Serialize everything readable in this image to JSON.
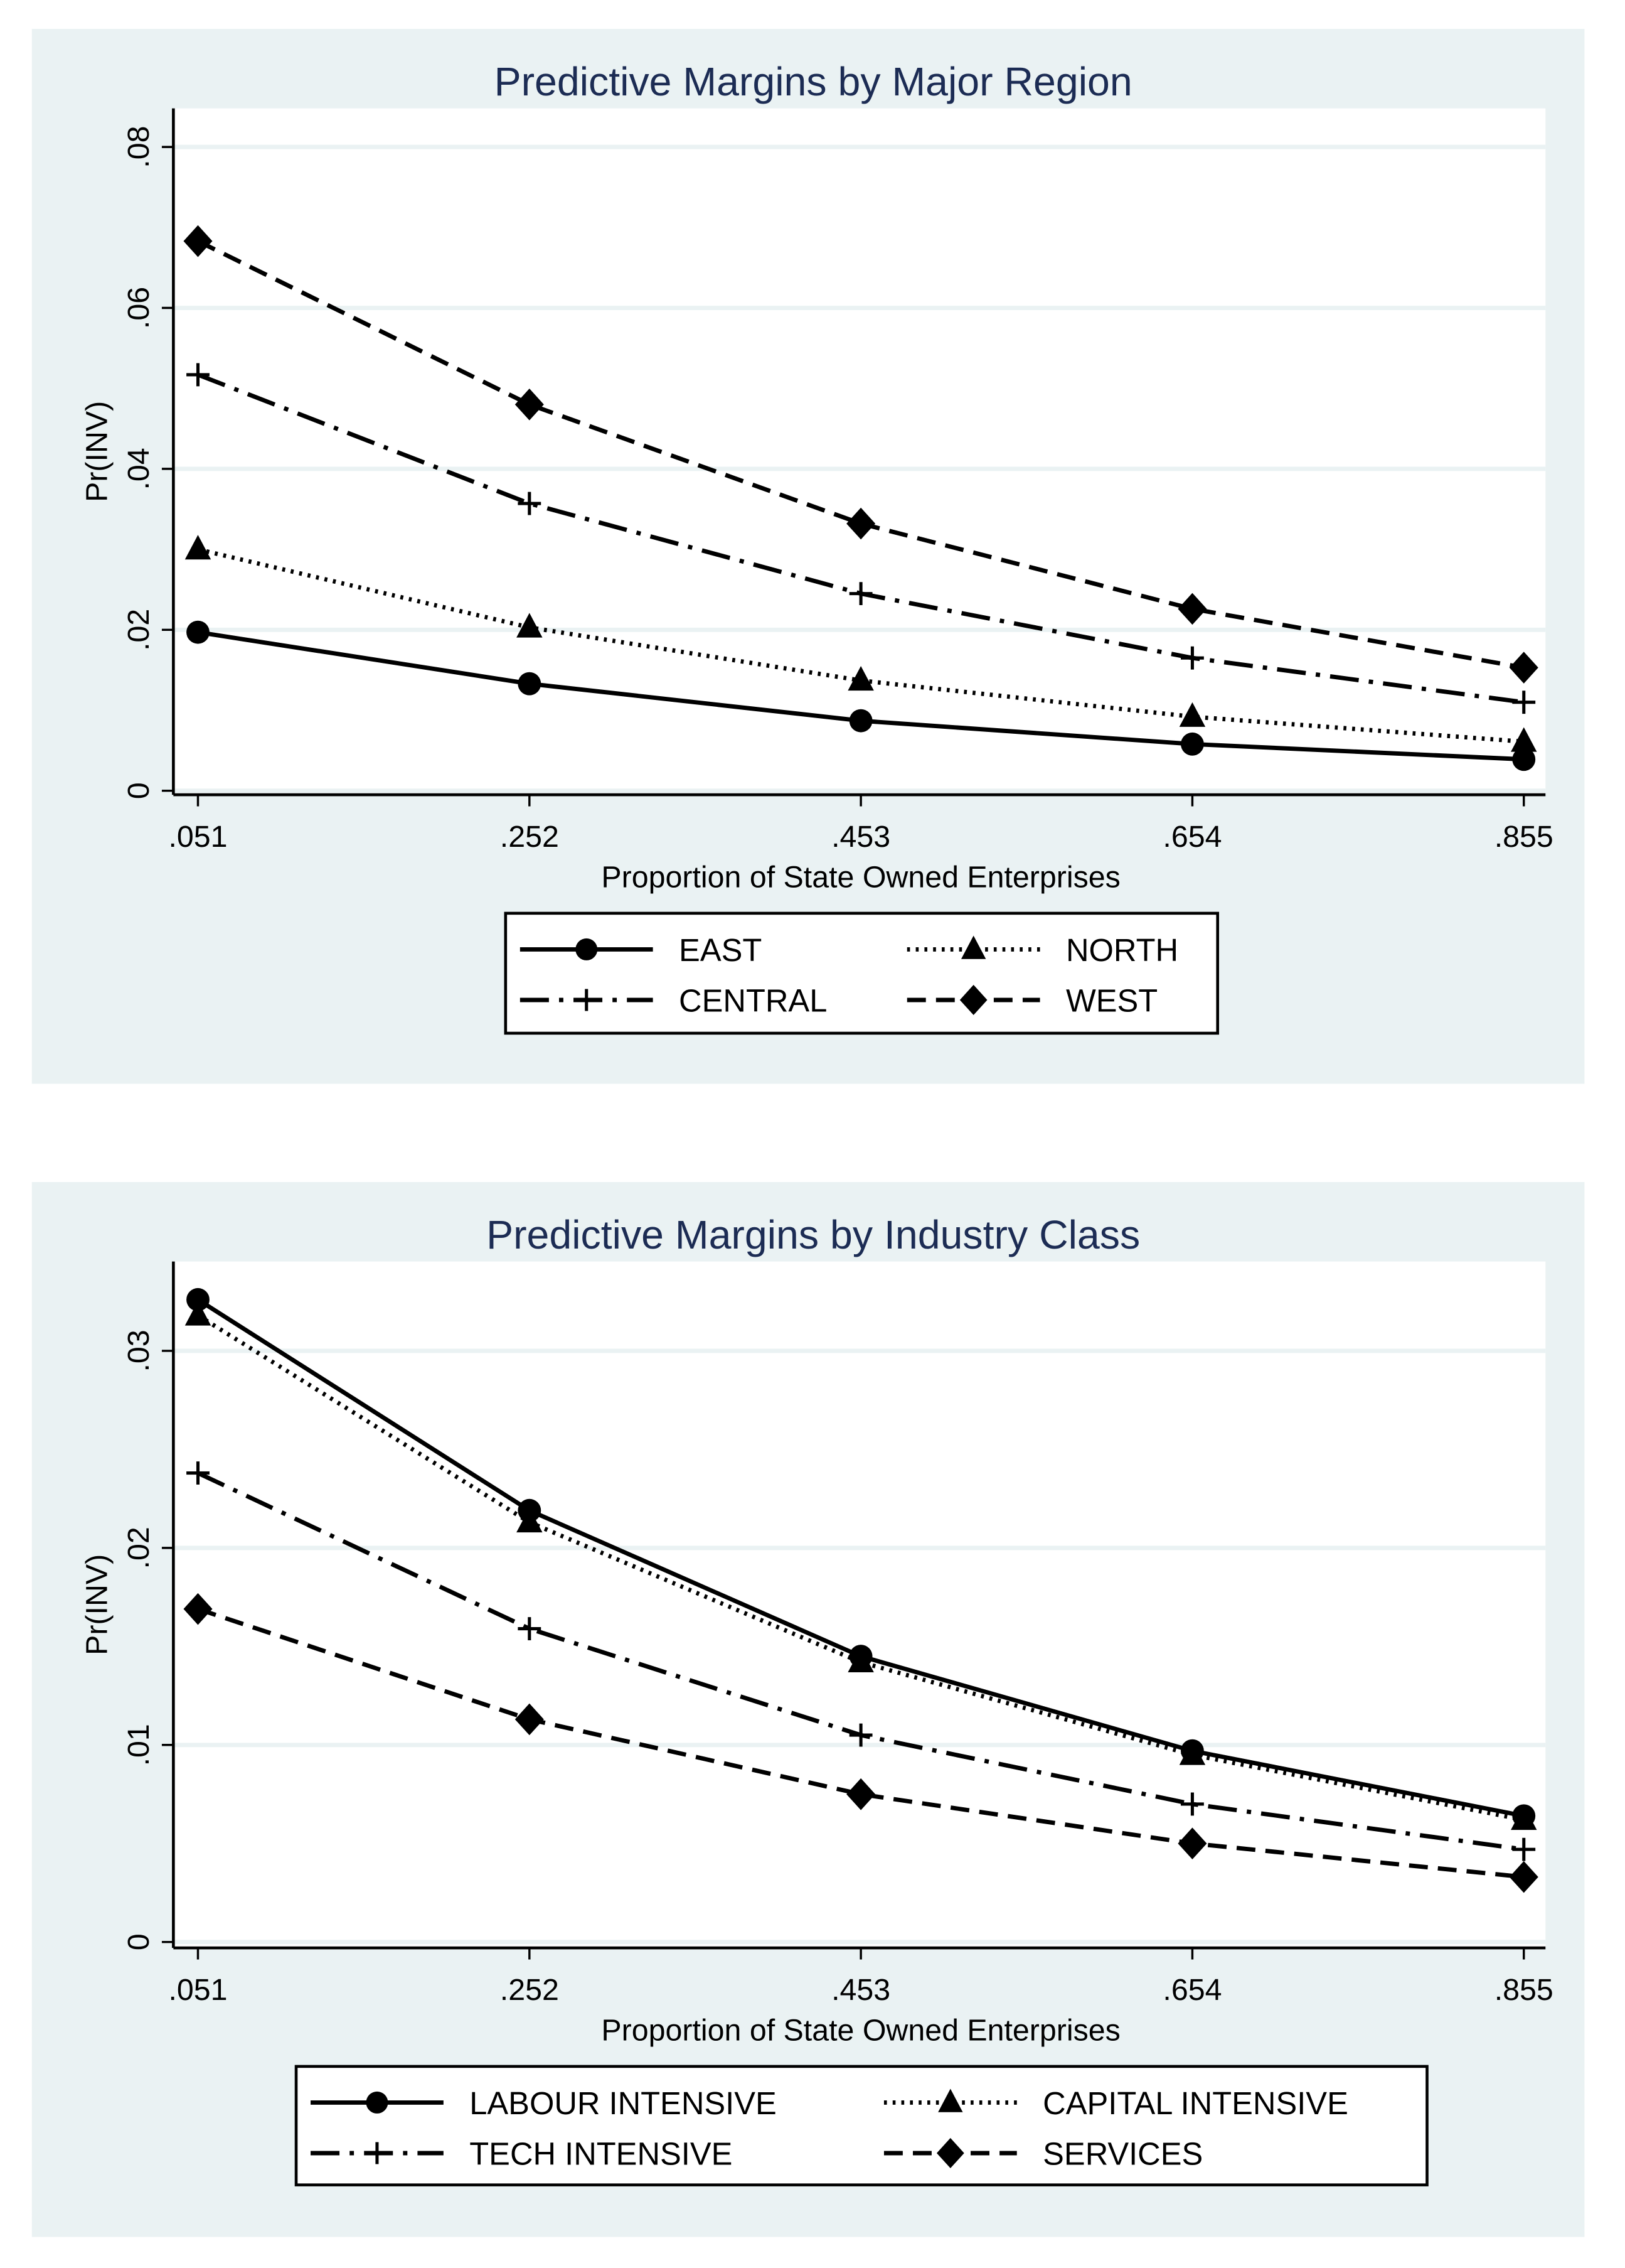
{
  "chart_data": [
    {
      "type": "line",
      "title": "Predictive Margins by Major Region",
      "xlabel": "Proportion of State Owned Enterprises",
      "ylabel": "Pr(INV)",
      "x": [
        0.051,
        0.252,
        0.453,
        0.654,
        0.855
      ],
      "xtick_labels": [
        ".051",
        ".252",
        ".453",
        ".654",
        ".855"
      ],
      "yticks": [
        0,
        0.02,
        0.04,
        0.06,
        0.08
      ],
      "ytick_labels": [
        "0",
        ".02",
        ".04",
        ".06",
        ".08"
      ],
      "ylim": [
        -0.0005,
        0.083
      ],
      "grid": true,
      "legend_placement": "bottom",
      "series": [
        {
          "name": "EAST",
          "marker": "circle",
          "line": "solid",
          "values": [
            0.0197,
            0.0133,
            0.0087,
            0.0058,
            0.0039
          ]
        },
        {
          "name": "NORTH",
          "marker": "triangle",
          "line": "dotted",
          "values": [
            0.03,
            0.0203,
            0.0137,
            0.0092,
            0.0061
          ]
        },
        {
          "name": "CENTRAL",
          "marker": "plus",
          "line": "dash-dot",
          "values": [
            0.0517,
            0.0357,
            0.0245,
            0.0165,
            0.011
          ]
        },
        {
          "name": "WEST",
          "marker": "diamond",
          "line": "dashed",
          "values": [
            0.0683,
            0.048,
            0.0332,
            0.0226,
            0.0153
          ]
        }
      ]
    },
    {
      "type": "line",
      "title": "Predictive Margins by Industry Class",
      "xlabel": "Proportion of State Owned Enterprises",
      "ylabel": "Pr(INV)",
      "x": [
        0.051,
        0.252,
        0.453,
        0.654,
        0.855
      ],
      "xtick_labels": [
        ".051",
        ".252",
        ".453",
        ".654",
        ".855"
      ],
      "yticks": [
        0,
        0.01,
        0.02,
        0.03
      ],
      "ytick_labels": [
        "0",
        ".01",
        ".02",
        ".03"
      ],
      "ylim": [
        -0.0003,
        0.0338
      ],
      "grid": true,
      "legend_placement": "bottom",
      "series": [
        {
          "name": "LABOUR INTENSIVE",
          "marker": "circle",
          "line": "solid",
          "values": [
            0.0326,
            0.0219,
            0.0145,
            0.0097,
            0.0064
          ]
        },
        {
          "name": "CAPITAL INTENSIVE",
          "marker": "triangle",
          "line": "dotted",
          "values": [
            0.0318,
            0.0213,
            0.0142,
            0.0095,
            0.0062
          ]
        },
        {
          "name": "TECH INTENSIVE",
          "marker": "plus",
          "line": "dash-dot",
          "values": [
            0.0238,
            0.0159,
            0.0105,
            0.007,
            0.0047
          ]
        },
        {
          "name": "SERVICES",
          "marker": "diamond",
          "line": "dashed",
          "values": [
            0.0169,
            0.0113,
            0.0075,
            0.005,
            0.0033
          ]
        }
      ]
    }
  ],
  "colors": {
    "panel_bg": "#eaf2f3",
    "title": "#1c2c54",
    "grid": "#eaf2f3",
    "line": "#000000"
  }
}
